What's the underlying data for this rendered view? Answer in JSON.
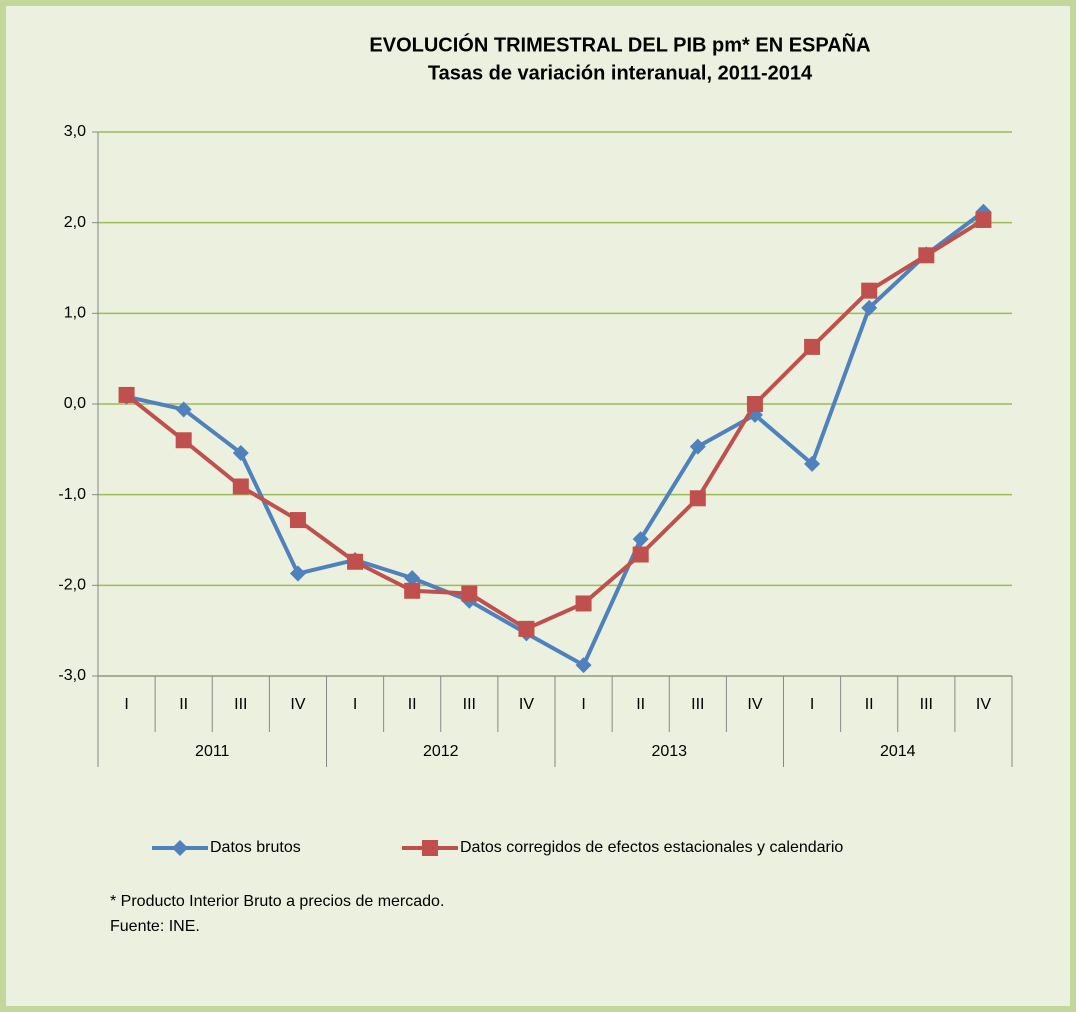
{
  "chart_data": {
    "type": "line",
    "title": "EVOLUCIÓN TRIMESTRAL DEL PIB pm* EN ESPAÑA",
    "subtitle": "Tasas de variación interanual, 2011-2014",
    "categories": [
      "I",
      "II",
      "III",
      "IV",
      "I",
      "II",
      "III",
      "IV",
      "I",
      "II",
      "III",
      "IV",
      "I",
      "II",
      "III",
      "IV"
    ],
    "years": [
      "2011",
      "2012",
      "2013",
      "2014"
    ],
    "series": [
      {
        "name": "Datos brutos",
        "color": "#4f81bd",
        "marker": "diamond",
        "values": [
          0.08,
          -0.06,
          -0.54,
          -1.87,
          -1.72,
          -1.92,
          -2.17,
          -2.53,
          -2.88,
          -1.49,
          -0.47,
          -0.12,
          -0.66,
          1.06,
          1.65,
          2.12
        ]
      },
      {
        "name": "Datos corregidos de efectos estacionales y calendario",
        "color": "#c0504d",
        "marker": "square",
        "values": [
          0.1,
          -0.4,
          -0.91,
          -1.28,
          -1.74,
          -2.06,
          -2.09,
          -2.48,
          -2.2,
          -1.66,
          -1.04,
          0.0,
          0.63,
          1.25,
          1.64,
          2.03
        ]
      }
    ],
    "ylim": [
      -3,
      3
    ],
    "yticks": [
      {
        "value": -3,
        "label": "-3,0"
      },
      {
        "value": -2,
        "label": "-2,0"
      },
      {
        "value": -1,
        "label": "-1,0"
      },
      {
        "value": 0,
        "label": "0,0"
      },
      {
        "value": 1,
        "label": "1,0"
      },
      {
        "value": 2,
        "label": "2,0"
      },
      {
        "value": 3,
        "label": "3,0"
      }
    ],
    "grid": true,
    "legend": "bottom",
    "notes": [
      "* Producto Interior Bruto a precios de mercado.",
      "Fuente: INE."
    ]
  }
}
